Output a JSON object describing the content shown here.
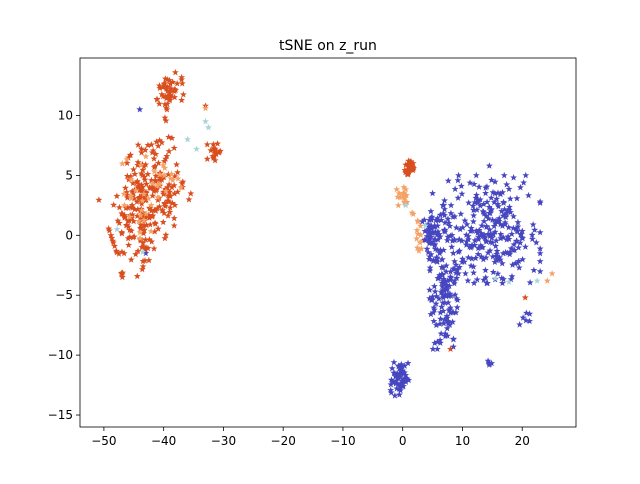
{
  "chart_data": {
    "type": "scatter",
    "title": "tSNE on z_run",
    "xlabel": "",
    "ylabel": "",
    "xlim": [
      -54,
      29
    ],
    "ylim": [
      -16,
      14.8
    ],
    "x_ticks": [
      -50,
      -40,
      -30,
      -20,
      -10,
      0,
      10,
      20
    ],
    "y_ticks": [
      -15,
      -10,
      -5,
      0,
      5,
      10
    ],
    "grid": false,
    "legend": "none",
    "marker": "star",
    "series": [
      {
        "color": "#d94e1f",
        "clusters": [
          {
            "center": [
              -43,
              3
            ],
            "radius": [
              6.5,
              4.5
            ],
            "count": 260,
            "angle": 0.6
          },
          {
            "center": [
              -39,
              12
            ],
            "radius": [
              2.2,
              1.4
            ],
            "count": 45,
            "angle": 0.2
          },
          {
            "center": [
              -31.5,
              7
            ],
            "radius": [
              1.2,
              1.5
            ],
            "count": 18,
            "angle": 0
          },
          {
            "center": [
              1.2,
              5.6
            ],
            "radius": [
              0.9,
              0.6
            ],
            "count": 40,
            "angle": 0
          },
          {
            "center": [
              -47,
              -3.2
            ],
            "radius": [
              0.3,
              0.3
            ],
            "count": 4,
            "angle": 0
          },
          {
            "center": [
              -43.5,
              -2.2
            ],
            "radius": [
              0.4,
              0.5
            ],
            "count": 3,
            "angle": 0
          }
        ],
        "points": [
          [
            8,
            -9.5
          ],
          [
            20.5,
            -5.2
          ],
          [
            -37,
            13
          ],
          [
            -33,
            10.8
          ]
        ]
      },
      {
        "color": "#f4a265",
        "clusters": [
          {
            "center": [
              -42,
              4.5
            ],
            "radius": [
              6,
              4
            ],
            "count": 38,
            "angle": 0.6
          },
          {
            "center": [
              0.2,
              3.2
            ],
            "radius": [
              1.2,
              0.8
            ],
            "count": 18,
            "angle": 0
          },
          {
            "center": [
              2.5,
              -0.5
            ],
            "radius": [
              1,
              2.5
            ],
            "count": 14,
            "angle": 0
          }
        ],
        "points": [
          [
            25,
            -3.2
          ],
          [
            24.2,
            -3.8
          ],
          [
            -33,
            10.6
          ]
        ]
      },
      {
        "color": "#4646c0",
        "clusters": [
          {
            "center": [
              15,
              0.5
            ],
            "radius": [
              8,
              4.5
            ],
            "count": 250,
            "angle": 0
          },
          {
            "center": [
              7,
              -3.5
            ],
            "radius": [
              2.5,
              6
            ],
            "count": 160,
            "angle": 0
          },
          {
            "center": [
              4.5,
              0
            ],
            "radius": [
              1.2,
              2
            ],
            "count": 40,
            "angle": 0
          },
          {
            "center": [
              -0.5,
              -12
            ],
            "radius": [
              1.5,
              1.4
            ],
            "count": 60,
            "angle": 0
          },
          {
            "center": [
              20.5,
              -7
            ],
            "radius": [
              1,
              0.8
            ],
            "count": 6,
            "angle": 0
          },
          {
            "center": [
              14.5,
              -10.7
            ],
            "radius": [
              0.5,
              0.4
            ],
            "count": 5,
            "angle": 0
          }
        ],
        "points": [
          [
            -44,
            10.5
          ],
          [
            -43,
            -1.5
          ],
          [
            5,
            3.5
          ],
          [
            14.5,
            5.8
          ],
          [
            23,
            2.7
          ]
        ]
      },
      {
        "color": "#a8d5d8",
        "clusters": [],
        "points": [
          [
            -33,
            9.5
          ],
          [
            -32.5,
            9.0
          ],
          [
            -34.5,
            7.2
          ],
          [
            -47.8,
            0.5
          ],
          [
            -43.5,
            -1.4
          ],
          [
            3.8,
            0.8
          ],
          [
            22.5,
            -3.8
          ],
          [
            15.5,
            -3.6
          ],
          [
            17.8,
            -3.9
          ],
          [
            -36,
            8
          ],
          [
            0.5,
            2.5
          ]
        ]
      }
    ]
  }
}
